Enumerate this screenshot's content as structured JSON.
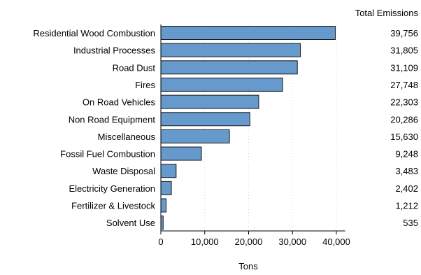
{
  "chart_data": {
    "type": "bar",
    "orientation": "horizontal",
    "value_column_header": "Total Emissions",
    "xlabel": "Tons",
    "ylabel": "",
    "xlim": [
      0,
      42000
    ],
    "xticks": [
      0,
      10000,
      20000,
      30000,
      40000
    ],
    "xtick_labels": [
      "0",
      "10,000",
      "20,000",
      "30,000",
      "40,000"
    ],
    "grid": "vertical dotted",
    "categories": [
      "Residential Wood Combustion",
      "Industrial Processes",
      "Road Dust",
      "Fires",
      "On Road Vehicles",
      "Non Road Equipment",
      "Miscellaneous",
      "Fossil Fuel Combustion",
      "Waste Disposal",
      "Electricity Generation",
      "Fertilizer & Livestock",
      "Solvent Use"
    ],
    "values": [
      39756,
      31805,
      31109,
      27748,
      22303,
      20286,
      15630,
      9248,
      3483,
      2402,
      1212,
      535
    ],
    "value_labels": [
      "39,756",
      "31,805",
      "31,109",
      "27,748",
      "22,303",
      "20,286",
      "15,630",
      "9,248",
      "3,483",
      "2,402",
      "1,212",
      "535"
    ],
    "colors": {
      "bar": "#6699cc",
      "bar_edge": "#1a1a1a",
      "grid": "#d9d9d9"
    }
  }
}
